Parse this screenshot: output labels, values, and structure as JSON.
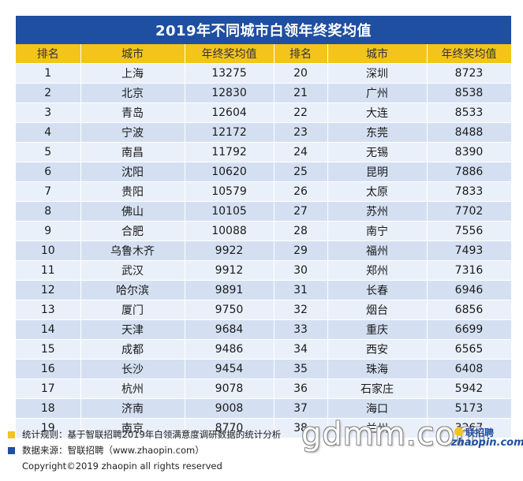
{
  "title": "2019年不同城市白领年终奖均值",
  "headers": [
    "排名",
    "城市",
    "年终奖均值",
    "排名",
    "城市",
    "年终奖均值"
  ],
  "rows": [
    [
      "1",
      "上海",
      "13275",
      "20",
      "深圳",
      "8723"
    ],
    [
      "2",
      "北京",
      "12830",
      "21",
      "广州",
      "8538"
    ],
    [
      "3",
      "青岛",
      "12604",
      "22",
      "大连",
      "8533"
    ],
    [
      "4",
      "宁波",
      "12172",
      "23",
      "东莞",
      "8488"
    ],
    [
      "5",
      "南昌",
      "11792",
      "24",
      "无锡",
      "8390"
    ],
    [
      "6",
      "沈阳",
      "10620",
      "25",
      "昆明",
      "7886"
    ],
    [
      "7",
      "贵阳",
      "10579",
      "26",
      "太原",
      "7833"
    ],
    [
      "8",
      "佛山",
      "10105",
      "27",
      "苏州",
      "7702"
    ],
    [
      "9",
      "合肥",
      "10088",
      "28",
      "南宁",
      "7556"
    ],
    [
      "10",
      "乌鲁木齐",
      "9922",
      "29",
      "福州",
      "7493"
    ],
    [
      "11",
      "武汉",
      "9912",
      "30",
      "郑州",
      "7316"
    ],
    [
      "12",
      "哈尔滨",
      "9891",
      "31",
      "长春",
      "6946"
    ],
    [
      "13",
      "厦门",
      "9750",
      "32",
      "烟台",
      "6856"
    ],
    [
      "14",
      "天津",
      "9684",
      "33",
      "重庆",
      "6699"
    ],
    [
      "15",
      "成都",
      "9486",
      "34",
      "西安",
      "6565"
    ],
    [
      "16",
      "长沙",
      "9454",
      "35",
      "珠海",
      "6408"
    ],
    [
      "17",
      "杭州",
      "9078",
      "36",
      "石家庄",
      "5942"
    ],
    [
      "18",
      "济南",
      "9008",
      "37",
      "海口",
      "5173"
    ],
    [
      "19",
      "南京",
      "8770",
      "38",
      "兰州",
      "3267"
    ]
  ],
  "notes": {
    "stats_rule": "统计规则：基于智联招聘2019年白领满意度调研数据的统计分析",
    "source": "数据来源：智联招聘（www.zhaopin.com）",
    "copyright": "Copyright©2019 zhaopin all rights reserved"
  },
  "watermark": "gdmm.com",
  "logo": {
    "zh": "联招聘",
    "en": "zhaopin.com"
  },
  "colors": {
    "title_bg": "#1e4fa0",
    "header_bg": "#f2c41c",
    "row_light": "#eaf0fa",
    "row_dark": "#d4e0f2"
  }
}
